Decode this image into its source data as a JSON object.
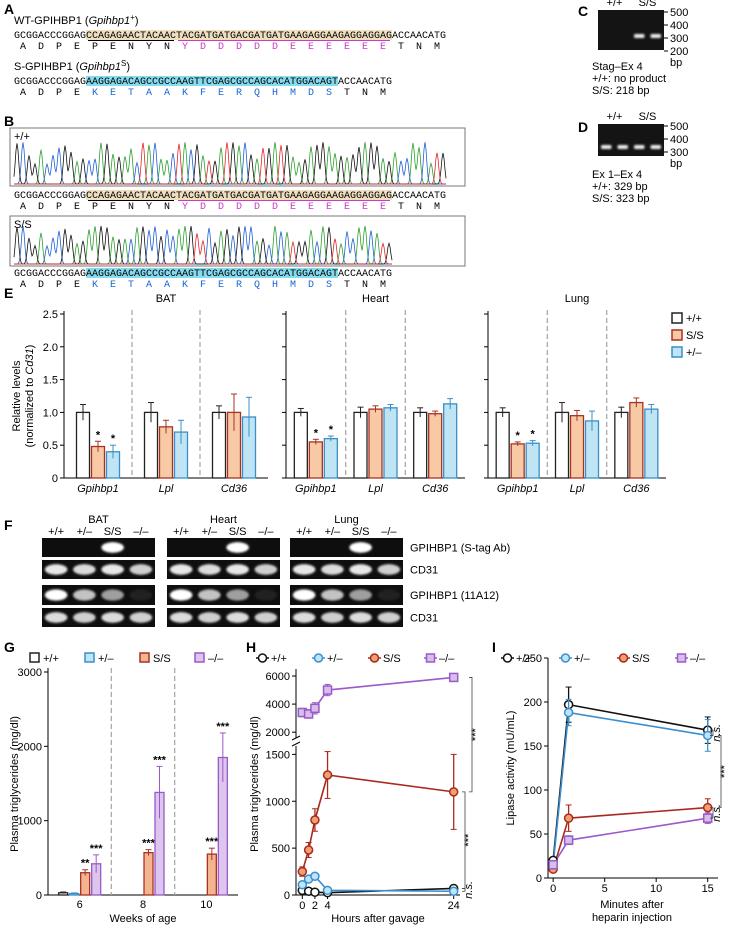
{
  "panel_labels": [
    "A",
    "B",
    "C",
    "D",
    "E",
    "F",
    "G",
    "H",
    "I"
  ],
  "panel_a": {
    "wt": {
      "label": [
        "WT-GPIHBP1 (",
        "Gpihbp1",
        "+",
        ")"
      ],
      "dna": [
        "GCGGACCCGGAG",
        "CCAGAGAACTACAAC",
        "TACGATGATGACGATGATGAAGAGGAAGAGGAGGAG",
        "ACCAACATG"
      ],
      "aa": [
        "ADPE",
        "PENYN",
        "YDDDDDEEEEEE",
        "TNM"
      ]
    },
    "s": {
      "label": [
        "S-GPIHBP1 (",
        "Gpihbp1",
        "S",
        ")"
      ],
      "dna": [
        "GCGGACCCGGAG",
        "AAGGAGACAGCCGCCAAGTTCGAGCGCCAGCACATGGACAGT",
        "ACCAACATG"
      ],
      "aa": [
        "ADPE",
        "KETAAKFERQHMDS",
        "TNM"
      ]
    }
  },
  "panel_b": {
    "wt_label": "+/+",
    "s_label": "S/S"
  },
  "panel_c": {
    "lanes": [
      "+/+",
      "S/S"
    ],
    "markers": [
      500,
      400,
      300,
      200
    ],
    "unit": "bp",
    "caption": [
      "Stag–Ex 4",
      "+/+: no product",
      "S/S: 218 bp"
    ]
  },
  "panel_d": {
    "lanes": [
      "+/+",
      "S/S"
    ],
    "markers": [
      500,
      400,
      300
    ],
    "unit": "bp",
    "caption": [
      "Ex 1–Ex 4",
      "+/+: 329 bp",
      "S/S: 323 bp"
    ]
  },
  "panel_f": {
    "groups": [
      "BAT",
      "Heart",
      "Lung"
    ],
    "lanes": [
      "+/+",
      "+/–",
      "S/S",
      "–/–"
    ],
    "rows": [
      "GPIHBP1 (S-tag Ab)",
      "CD31",
      "GPIHBP1 (11A12)",
      "CD31"
    ]
  },
  "chart_data": [
    {
      "type": "bar",
      "ylabel": [
        "Relative levels",
        "(normalized to ",
        "Cd31",
        ")"
      ],
      "ylim": [
        0,
        2.5
      ],
      "yticks": [
        0,
        0.5,
        {
          "value": 1,
          "label": "1.0"
        },
        {
          "value": 1.5,
          "label": "1.5"
        },
        {
          "value": 2,
          "label": "2.0"
        },
        {
          "value": 2.5,
          "label": "2.5"
        }
      ],
      "series": [
        {
          "name": "+/+",
          "color": "#222222",
          "fill": "#ffffff"
        },
        {
          "name": "S/S",
          "color": "#a83224",
          "fill": "#f7c9a4"
        },
        {
          "name": "+/–",
          "color": "#3b8fc8",
          "fill": "#bfe4f4"
        }
      ],
      "panels": [
        {
          "title": "BAT",
          "categories": [
            "Gpihbp1",
            "Lpl",
            "Cd36"
          ],
          "series": [
            {
              "values": [
                1,
                1,
                1
              ],
              "errors": [
                0.12,
                0.15,
                0.1
              ],
              "sig": [
                null,
                null,
                null
              ]
            },
            {
              "values": [
                0.48,
                0.78,
                1.0
              ],
              "errors": [
                0.08,
                0.1,
                0.28
              ],
              "sig": [
                "*",
                null,
                null
              ]
            },
            {
              "values": [
                0.4,
                0.7,
                0.93
              ],
              "errors": [
                0.1,
                0.18,
                0.3
              ],
              "sig": [
                "*",
                null,
                null
              ]
            }
          ]
        },
        {
          "title": "Heart",
          "categories": [
            "Gpihbp1",
            "Lpl",
            "Cd36"
          ],
          "series": [
            {
              "values": [
                1,
                1,
                1
              ],
              "errors": [
                0.06,
                0.08,
                0.07
              ],
              "sig": [
                null,
                null,
                null
              ]
            },
            {
              "values": [
                0.55,
                1.05,
                0.98
              ],
              "errors": [
                0.04,
                0.05,
                0.04
              ],
              "sig": [
                "*",
                null,
                null
              ]
            },
            {
              "values": [
                0.6,
                1.07,
                1.13
              ],
              "errors": [
                0.04,
                0.05,
                0.08
              ],
              "sig": [
                "*",
                null,
                null
              ]
            }
          ]
        },
        {
          "title": "Lung",
          "categories": [
            "Gpihbp1",
            "Lpl",
            "Cd36"
          ],
          "series": [
            {
              "values": [
                1,
                1,
                1
              ],
              "errors": [
                0.07,
                0.15,
                0.08
              ],
              "sig": [
                null,
                null,
                null
              ]
            },
            {
              "values": [
                0.52,
                0.95,
                1.15
              ],
              "errors": [
                0.03,
                0.08,
                0.07
              ],
              "sig": [
                "*",
                null,
                null
              ]
            },
            {
              "values": [
                0.53,
                0.87,
                1.05
              ],
              "errors": [
                0.04,
                0.15,
                0.07
              ],
              "sig": [
                "*",
                null,
                null
              ]
            }
          ]
        }
      ]
    },
    {
      "type": "bar",
      "ylabel": "Plasma triglycerides (mg/dl)",
      "xlabel": "Weeks of age",
      "categories": [
        "6",
        "8",
        "10"
      ],
      "ylim": [
        0,
        3000
      ],
      "yticks": [
        0,
        1000,
        2000,
        3000
      ],
      "series": [
        {
          "name": "+/+",
          "color": "#222222",
          "fill": "#ffffff",
          "values": [
            30,
            null,
            null
          ],
          "errors": [
            10,
            null,
            null
          ],
          "sig": [
            null,
            null,
            null
          ]
        },
        {
          "name": "+/–",
          "color": "#3b8fc8",
          "fill": "#bfe4f4",
          "values": [
            20,
            null,
            null
          ],
          "errors": [
            8,
            null,
            null
          ],
          "sig": [
            null,
            null,
            null
          ]
        },
        {
          "name": "S/S",
          "color": "#a83224",
          "fill": "#f3b58f",
          "values": [
            300,
            570,
            550
          ],
          "errors": [
            40,
            40,
            80
          ],
          "sig": [
            "**",
            "***",
            "***"
          ]
        },
        {
          "name": "–/–",
          "color": "#9b59c9",
          "fill": "#dcc6ee",
          "values": [
            420,
            1380,
            1850
          ],
          "errors": [
            120,
            350,
            330
          ],
          "sig": [
            "***",
            "***",
            "***"
          ]
        }
      ]
    },
    {
      "type": "line",
      "ylabel": "Plasma triglycerides (mg/dl)",
      "xlabel": "Hours after gavage",
      "x": [
        0,
        1,
        2,
        4,
        24
      ],
      "xlim": [
        -1,
        25
      ],
      "xticks": [
        0,
        2,
        4,
        24
      ],
      "ylim": [
        0,
        1600
      ],
      "yticks": [
        0,
        500,
        1000,
        1500
      ],
      "ylim_break": [
        1800,
        6500
      ],
      "yticks_break": [
        2000,
        4000,
        6000
      ],
      "series": [
        {
          "name": "+/+",
          "color": "#111111",
          "fill": "#ffffff",
          "marker": "circle",
          "values": [
            50,
            40,
            30,
            25,
            70
          ],
          "errors": [
            10,
            10,
            10,
            5,
            15
          ]
        },
        {
          "name": "+/–",
          "color": "#3a8fd0",
          "fill": "#bfe4f4",
          "marker": "circle",
          "values": [
            110,
            170,
            200,
            50,
            40
          ],
          "errors": [
            20,
            30,
            30,
            10,
            10
          ]
        },
        {
          "name": "S/S",
          "color": "#a82a1e",
          "fill": "#f0a070",
          "marker": "circle",
          "values": [
            250,
            480,
            800,
            1280,
            1100
          ],
          "errors": [
            50,
            80,
            120,
            250,
            400
          ]
        },
        {
          "name": "–/–",
          "color": "#9b59c9",
          "fill": "#d6c0ea",
          "marker": "square",
          "values": [
            3400,
            3300,
            3700,
            5000,
            5900
          ],
          "errors": [
            300,
            300,
            400,
            400,
            200
          ]
        }
      ],
      "annotations": [
        "***",
        "***",
        "n.s."
      ]
    },
    {
      "type": "line",
      "ylabel": "Lipase activity (mU/mL)",
      "xlabel": [
        "Minutes after",
        "heparin injection"
      ],
      "x": [
        0,
        1.5,
        15
      ],
      "xlim": [
        -0.5,
        16
      ],
      "xticks": [
        0,
        5,
        10,
        15
      ],
      "ylim": [
        0,
        250
      ],
      "yticks": [
        0,
        50,
        100,
        150,
        200,
        250
      ],
      "series": [
        {
          "name": "+/+",
          "color": "#111111",
          "fill": "#ffffff",
          "marker": "circle",
          "values": [
            20,
            197,
            168
          ],
          "errors": [
            3,
            20,
            15
          ]
        },
        {
          "name": "+/–",
          "color": "#3a8fd0",
          "fill": "#bfe4f4",
          "marker": "circle",
          "values": [
            15,
            188,
            162
          ],
          "errors": [
            3,
            15,
            18
          ]
        },
        {
          "name": "S/S",
          "color": "#a82a1e",
          "fill": "#f0a070",
          "marker": "circle",
          "values": [
            10,
            68,
            80
          ],
          "errors": [
            2,
            15,
            10
          ]
        },
        {
          "name": "–/–",
          "color": "#9b59c9",
          "fill": "#d6c0ea",
          "marker": "square",
          "values": [
            15,
            43,
            68
          ],
          "errors": [
            2,
            5,
            6
          ]
        }
      ],
      "annotations": [
        "n.s.",
        "***",
        "n.s."
      ]
    }
  ]
}
